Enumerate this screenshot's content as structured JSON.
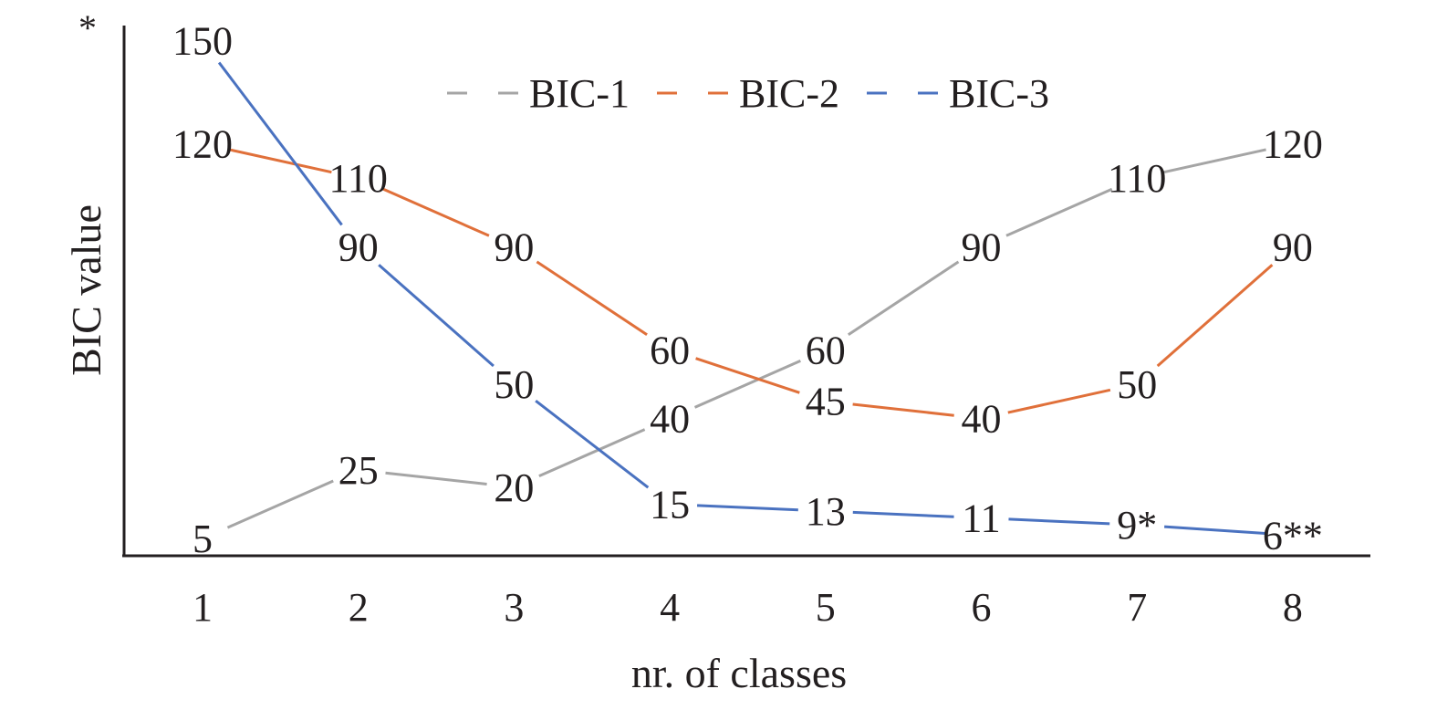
{
  "chart_data": {
    "type": "line",
    "title": "",
    "xlabel": "nr. of classes",
    "ylabel": "BIC value",
    "corner_mark": "*",
    "categories": [
      "1",
      "2",
      "3",
      "4",
      "5",
      "6",
      "7",
      "8"
    ],
    "ylim": [
      0,
      160
    ],
    "grid": false,
    "legend": {
      "position": "top"
    },
    "series": [
      {
        "name": "BIC-1",
        "color": "#a5a5a5",
        "values": [
          5,
          25,
          20,
          40,
          60,
          90,
          110,
          120
        ],
        "labels": [
          "5",
          "25",
          "20",
          "40",
          "60",
          "90",
          "110",
          "120"
        ]
      },
      {
        "name": "BIC-2",
        "color": "#e0703a",
        "values": [
          120,
          110,
          90,
          60,
          45,
          40,
          50,
          90
        ],
        "labels": [
          "120",
          "110",
          "90",
          "60",
          "45",
          "40",
          "50",
          "90"
        ]
      },
      {
        "name": "BIC-3",
        "color": "#4a72c0",
        "values": [
          150,
          90,
          50,
          15,
          13,
          11,
          9,
          6
        ],
        "labels": [
          "150",
          "90",
          "50",
          "15",
          "13",
          "11",
          "9*",
          "6**"
        ]
      }
    ]
  }
}
